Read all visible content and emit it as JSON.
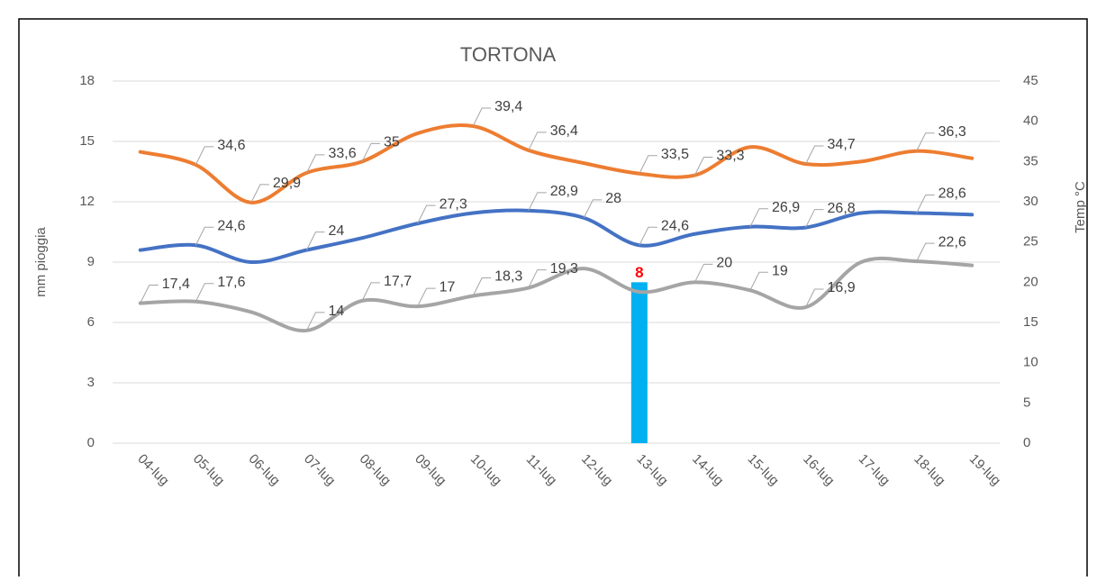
{
  "chart_data": {
    "type": "bar_line",
    "title": "TORTONA",
    "y_label": "mm pioggia",
    "y2_label": "Temp °C",
    "categories": [
      "04-lug",
      "05-lug",
      "06-lug",
      "07-lug",
      "08-lug",
      "09-lug",
      "10-lug",
      "11-lug",
      "12-lug",
      "13-lug",
      "14-lug",
      "15-lug",
      "16-lug",
      "17-lug",
      "18-lug",
      "19-lug"
    ],
    "ylim": [
      0,
      18
    ],
    "yticks": [
      0,
      3,
      6,
      9,
      12,
      15,
      18
    ],
    "y2lim": [
      0,
      45
    ],
    "y2ticks": [
      0,
      5,
      10,
      15,
      20,
      25,
      30,
      35,
      40,
      45
    ],
    "series": [
      {
        "type": "bar",
        "color": "#00b0f0",
        "label_color": "#ff0000",
        "values": [
          null,
          null,
          null,
          null,
          null,
          null,
          null,
          null,
          null,
          8,
          null,
          null,
          null,
          null,
          null,
          null
        ]
      },
      {
        "type": "line",
        "axis": "y2",
        "color": "#ed7d31",
        "values": [
          36.2,
          34.6,
          29.9,
          33.6,
          35,
          38.5,
          39.4,
          36.4,
          34.8,
          33.5,
          33.3,
          36.8,
          34.7,
          35,
          36.3,
          35.4
        ],
        "value_labels": [
          null,
          "34,6",
          "29,9",
          "33,6",
          "35",
          null,
          "39,4",
          "36,4",
          null,
          "33,5",
          "33,3",
          null,
          "34,7",
          null,
          "36,3",
          null
        ]
      },
      {
        "type": "line",
        "axis": "y2",
        "color": "#4472c4",
        "values": [
          24,
          24.6,
          22.5,
          24,
          25.5,
          27.3,
          28.6,
          28.9,
          28,
          24.6,
          26,
          26.9,
          26.8,
          28.6,
          28.6,
          28.4
        ],
        "value_labels": [
          null,
          "24,6",
          null,
          "24",
          null,
          "27,3",
          null,
          "28,9",
          "28",
          "24,6",
          null,
          "26,9",
          "26,8",
          null,
          "28,6",
          null
        ]
      },
      {
        "type": "line",
        "axis": "y2",
        "color": "#a5a5a5",
        "values": [
          17.4,
          17.6,
          16.3,
          14,
          17.7,
          17,
          18.3,
          19.3,
          21.7,
          18.8,
          20,
          19,
          16.9,
          22.5,
          22.6,
          22.1
        ],
        "value_labels": [
          "17,4",
          "17,6",
          null,
          "14",
          "17,7",
          "17",
          "18,3",
          "19,3",
          null,
          null,
          "20",
          "19",
          "16,9",
          null,
          "22,6",
          null
        ]
      }
    ]
  }
}
